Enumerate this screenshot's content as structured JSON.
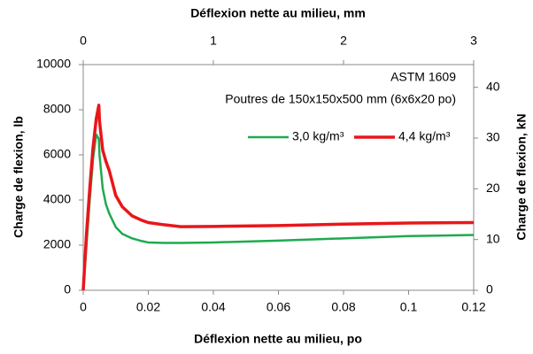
{
  "chart_data": {
    "type": "line",
    "title": "Déflexion nette au milieu, mm",
    "xlabel": "Déflexion nette au milieu, po",
    "ylabel": "Charge de flexion, lb",
    "y2label": "Charge de flexion, kN",
    "annotations": [
      "ASTM 1609",
      "Poutres de 150x150x500 mm (6x6x20 po)"
    ],
    "x": [
      0,
      0.001,
      0.002,
      0.003,
      0.004,
      0.0048,
      0.005,
      0.006,
      0.007,
      0.008,
      0.01,
      0.012,
      0.015,
      0.018,
      0.02,
      0.025,
      0.03,
      0.04,
      0.06,
      0.08,
      0.1,
      0.12
    ],
    "series": [
      {
        "name": "3,0 kg/m³",
        "color": "#1faa4f",
        "values": [
          0,
          2000,
          4000,
          5800,
          6900,
          6700,
          6000,
          4500,
          3800,
          3400,
          2800,
          2500,
          2300,
          2180,
          2120,
          2100,
          2100,
          2120,
          2200,
          2300,
          2400,
          2450
        ]
      },
      {
        "name": "4,4 kg/m³",
        "color": "#e8161b",
        "values": [
          0,
          2500,
          4500,
          6300,
          7600,
          8200,
          7500,
          6200,
          5700,
          5300,
          4200,
          3700,
          3300,
          3100,
          3000,
          2900,
          2820,
          2830,
          2870,
          2930,
          2980,
          3000
        ]
      }
    ],
    "xlim": [
      0,
      0.12
    ],
    "xticks": [
      0,
      0.02,
      0.04,
      0.06,
      0.08,
      0.1,
      0.12
    ],
    "x2lim": [
      0,
      3
    ],
    "x2ticks": [
      0,
      1,
      2,
      3
    ],
    "ylim": [
      0,
      10000
    ],
    "yticks": [
      0,
      2000,
      4000,
      6000,
      8000,
      10000
    ],
    "y2lim": [
      0,
      44.48
    ],
    "y2ticks": [
      0,
      10,
      20,
      30,
      40
    ]
  }
}
